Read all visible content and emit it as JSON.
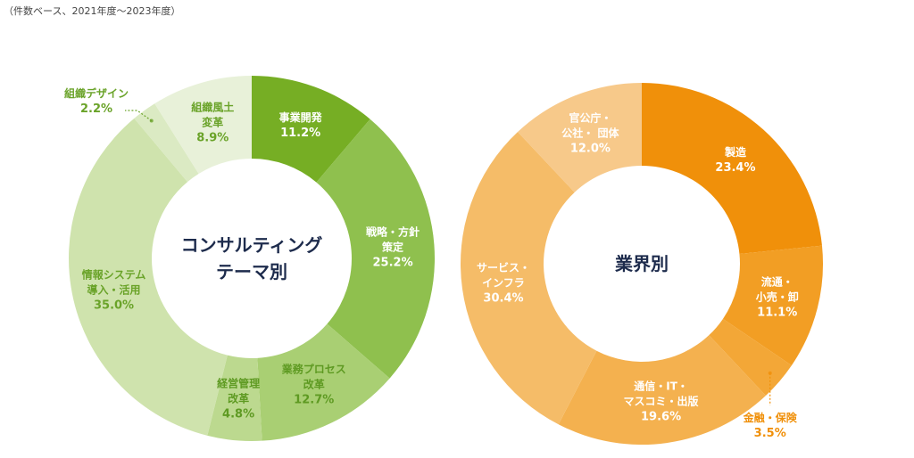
{
  "note": "（件数ベース、2021年度～2023年度）",
  "chart_data": [
    {
      "type": "donut",
      "title": "コンサルティング\nテーマ別",
      "categories": [
        "事業開発",
        "戦略・方針\n策定",
        "業務プロセス\n改革",
        "経営管理\n改革",
        "情報システム\n導入・活用",
        "組織デザイン",
        "組織風土\n変革"
      ],
      "values": [
        11.2,
        25.2,
        12.7,
        4.8,
        35.0,
        2.2,
        8.9
      ],
      "value_labels": [
        "11.2%",
        "25.2%",
        "12.7%",
        "4.8%",
        "35.0%",
        "2.2%",
        "8.9%"
      ],
      "colors": [
        "#76ae24",
        "#8fc04e",
        "#a9cf73",
        "#bcd98f",
        "#cfe3ad",
        "#dbeac3",
        "#e8f1d9"
      ],
      "label_colors": [
        "#ffffff",
        "#ffffff",
        "#5e9a22",
        "#5e9a22",
        "#6aa329",
        "#6aa329",
        "#6aa329"
      ]
    },
    {
      "type": "donut",
      "title": "業界別",
      "categories": [
        "製造",
        "流通・\n小売・卸",
        "金融・保険",
        "通信・IT・\nマスコミ・出版",
        "サービス・\nインフラ",
        "官公庁・\n公社・ 団体"
      ],
      "values": [
        23.4,
        11.1,
        3.5,
        19.6,
        30.4,
        12.0
      ],
      "value_labels": [
        "23.4%",
        "11.1%",
        "3.5%",
        "19.6%",
        "30.4%",
        "12.0%"
      ],
      "colors": [
        "#f0900a",
        "#f29e24",
        "#f3a737",
        "#f4b14f",
        "#f5bc68",
        "#f7c98a"
      ],
      "label_colors": [
        "#ffffff",
        "#ffffff",
        "#f0900a",
        "#ffffff",
        "#ffffff",
        "#ffffff"
      ]
    }
  ]
}
